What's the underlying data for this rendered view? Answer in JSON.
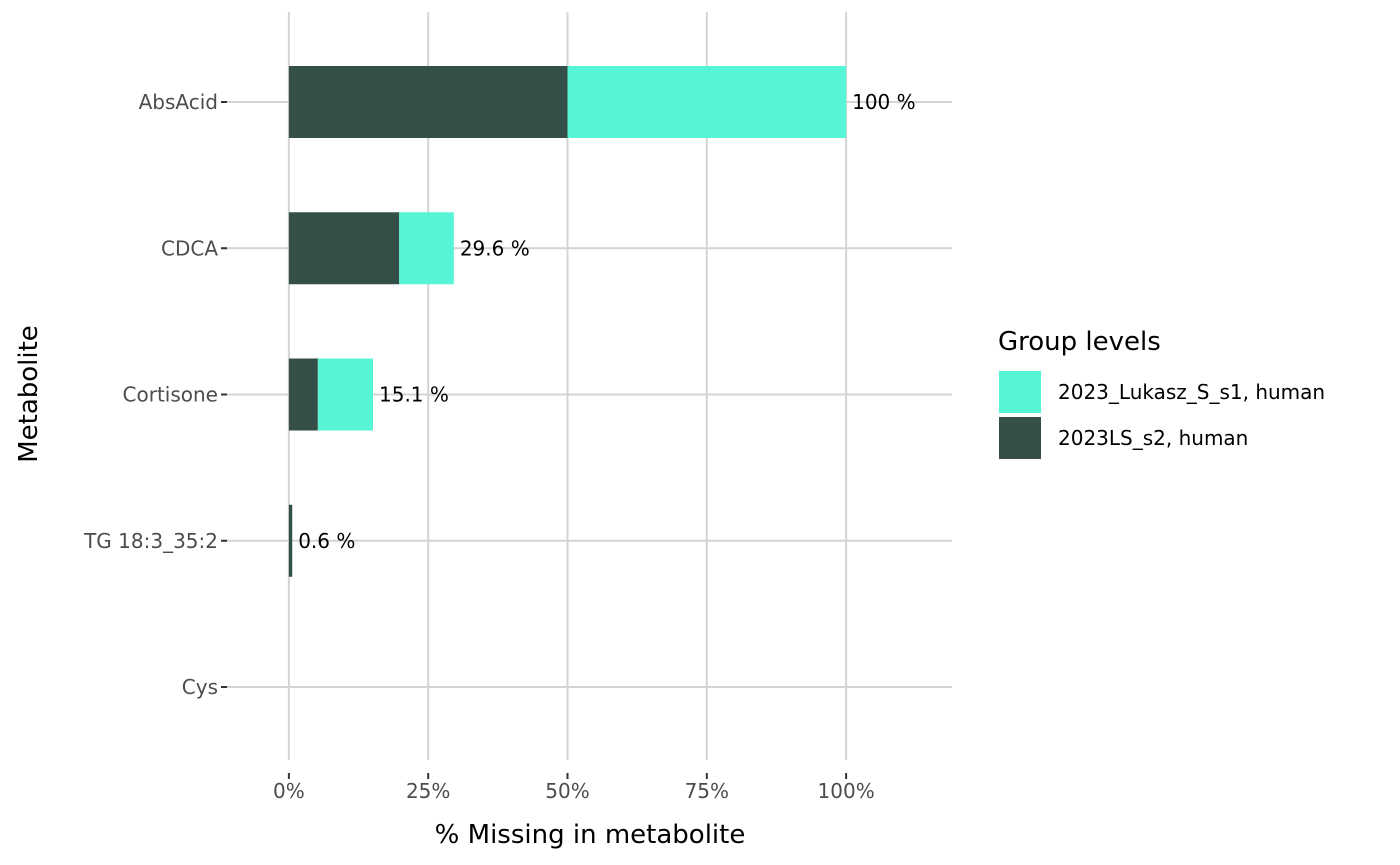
{
  "chart_data": {
    "type": "bar",
    "orientation": "horizontal",
    "stacked": true,
    "categories": [
      "AbsAcid",
      "CDCA",
      "Cortisone",
      "TG 18:3_35:2",
      "Cys"
    ],
    "series": [
      {
        "name": "2023LS_s2, human",
        "color": "#344e48",
        "values": [
          50,
          19.8,
          5.2,
          0.6,
          0
        ]
      },
      {
        "name": "2023_Lukasz_S_s1, human",
        "color": "#55f5d5",
        "values": [
          50,
          9.8,
          9.9,
          0,
          0
        ]
      }
    ],
    "data_labels": [
      "100 %",
      "29.6 %",
      "15.1 %",
      "0.6 %",
      ""
    ],
    "xlabel": "% Missing in metabolite",
    "ylabel": "Metabolite",
    "xlim": [
      -12,
      119
    ],
    "xticks": [
      {
        "value": 0,
        "label": "0%"
      },
      {
        "value": 25,
        "label": "25%"
      },
      {
        "value": 50,
        "label": "50%"
      },
      {
        "value": 75,
        "label": "75%"
      },
      {
        "value": 100,
        "label": "100%"
      }
    ],
    "grid": true,
    "legend": {
      "title": "Group levels",
      "position": "right",
      "entries": [
        {
          "label": "2023_Lukasz_S_s1, human",
          "color": "#55f5d5"
        },
        {
          "label": "2023LS_s2, human",
          "color": "#344e48"
        }
      ]
    }
  }
}
